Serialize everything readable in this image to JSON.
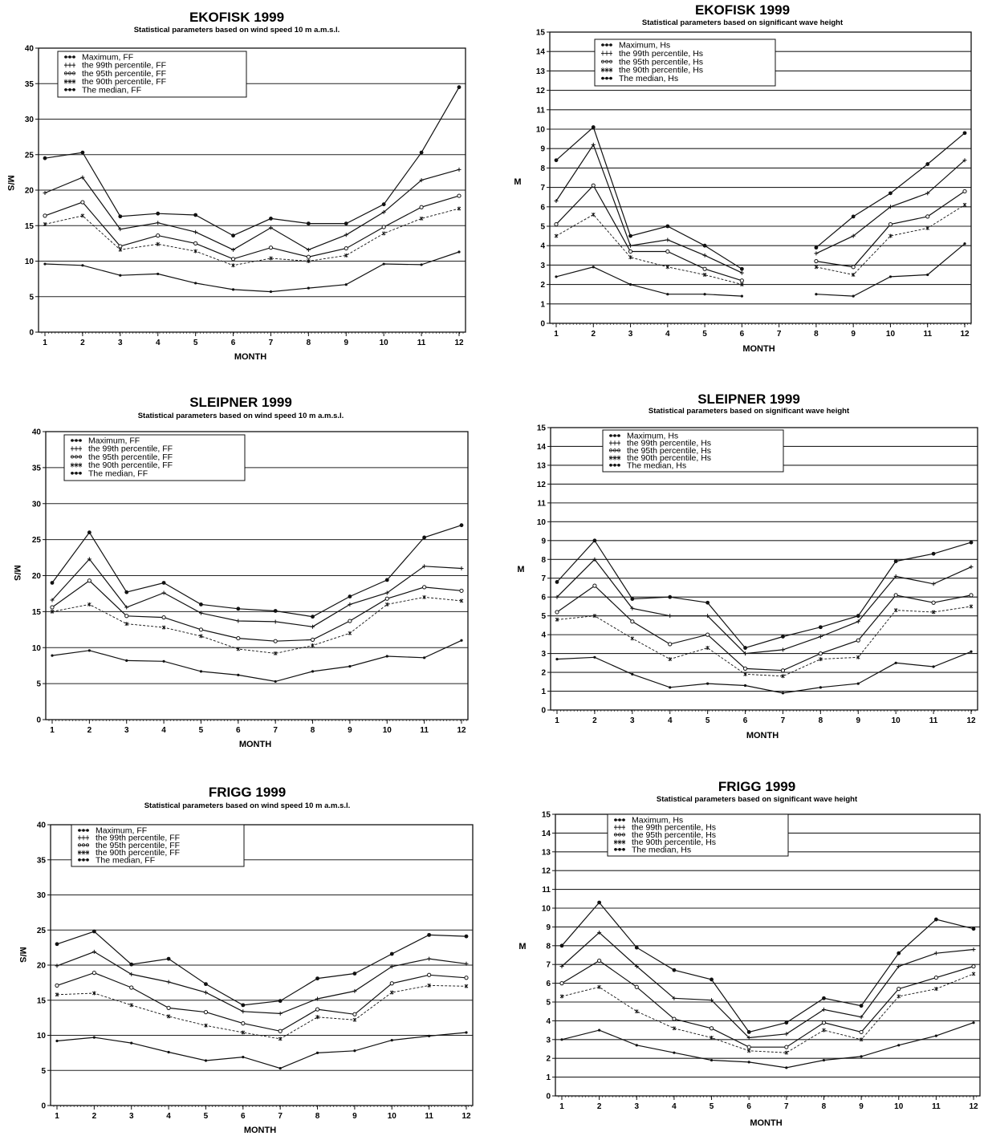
{
  "chart_data": [
    {
      "type": "line",
      "title": "EKOFISK 1999",
      "subtitle": "Statistical parameters based on wind speed 10 m a.m.s.l.",
      "xlabel": "MONTH",
      "ylabel": "M/S",
      "ylim": [
        0,
        40
      ],
      "yticks": [
        0,
        5,
        10,
        15,
        20,
        25,
        30,
        35,
        40
      ],
      "categories": [
        1,
        2,
        3,
        4,
        5,
        6,
        7,
        8,
        9,
        10,
        11,
        12
      ],
      "grid": true,
      "legend": "top-left",
      "series": [
        {
          "name": "Maximum, FF",
          "marker": "dot",
          "values": [
            24.5,
            25.3,
            16.3,
            16.7,
            16.5,
            13.6,
            16.0,
            15.3,
            15.3,
            18.0,
            25.3,
            34.5
          ]
        },
        {
          "name": "the 99th percentile, FF",
          "marker": "plus",
          "values": [
            19.6,
            21.8,
            14.5,
            15.4,
            14.1,
            11.6,
            14.7,
            11.6,
            13.7,
            16.9,
            21.4,
            22.9
          ]
        },
        {
          "name": "the 95th percentile, FF",
          "marker": "circle",
          "values": [
            16.4,
            18.3,
            12.1,
            13.6,
            12.5,
            10.3,
            11.9,
            10.6,
            11.8,
            14.8,
            17.6,
            19.2
          ]
        },
        {
          "name": "the 90th percentile, FF",
          "marker": "star",
          "dashed": true,
          "values": [
            15.2,
            16.4,
            11.6,
            12.4,
            11.4,
            9.4,
            10.4,
            10.0,
            10.8,
            13.9,
            16.0,
            17.4
          ]
        },
        {
          "name": "The median, FF",
          "marker": "small-dot",
          "values": [
            9.6,
            9.4,
            8.0,
            8.2,
            6.9,
            6.0,
            5.7,
            6.2,
            6.7,
            9.6,
            9.5,
            11.3
          ]
        }
      ]
    },
    {
      "type": "line",
      "title": "EKOFISK 1999",
      "subtitle": "Statistical parameters based on significant wave height",
      "xlabel": "MONTH",
      "ylabel": "M",
      "ylim": [
        0,
        15
      ],
      "yticks": [
        0,
        1,
        2,
        3,
        4,
        5,
        6,
        7,
        8,
        9,
        10,
        11,
        12,
        13,
        14,
        15
      ],
      "categories": [
        1,
        2,
        3,
        4,
        5,
        6,
        7,
        8,
        9,
        10,
        11,
        12
      ],
      "grid": true,
      "legend": "top-center",
      "series": [
        {
          "name": "Maximum, Hs",
          "marker": "dot",
          "values": [
            8.4,
            10.1,
            4.5,
            5.0,
            4.0,
            2.8,
            null,
            3.9,
            5.5,
            6.7,
            8.2,
            9.8
          ]
        },
        {
          "name": "the 99th percentile, Hs",
          "marker": "plus",
          "values": [
            6.3,
            9.2,
            4.0,
            4.3,
            3.5,
            2.6,
            null,
            3.6,
            4.5,
            6.0,
            6.7,
            8.4
          ]
        },
        {
          "name": "the 95th percentile, Hs",
          "marker": "circle",
          "values": [
            5.1,
            7.1,
            3.7,
            3.7,
            2.8,
            2.2,
            null,
            3.2,
            2.9,
            5.1,
            5.5,
            6.8
          ]
        },
        {
          "name": "the 90th percentile, Hs",
          "marker": "star",
          "dashed": true,
          "values": [
            4.5,
            5.6,
            3.4,
            2.9,
            2.5,
            2.0,
            null,
            2.9,
            2.5,
            4.5,
            4.9,
            6.1
          ]
        },
        {
          "name": "The median, Hs",
          "marker": "small-dot",
          "values": [
            2.4,
            2.9,
            2.0,
            1.5,
            1.5,
            1.4,
            null,
            1.5,
            1.4,
            2.4,
            2.5,
            4.1
          ]
        }
      ]
    },
    {
      "type": "line",
      "title": "SLEIPNER 1999",
      "subtitle": "Statistical parameters based on wind speed 10 m a.m.s.l.",
      "xlabel": "MONTH",
      "ylabel": "M/S",
      "ylim": [
        0,
        40
      ],
      "yticks": [
        0,
        5,
        10,
        15,
        20,
        25,
        30,
        35,
        40
      ],
      "categories": [
        1,
        2,
        3,
        4,
        5,
        6,
        7,
        8,
        9,
        10,
        11,
        12
      ],
      "grid": true,
      "legend": "top-left",
      "series": [
        {
          "name": "Maximum, FF",
          "marker": "dot",
          "values": [
            19.0,
            26.0,
            17.7,
            19.0,
            16.0,
            15.4,
            15.1,
            14.3,
            17.1,
            19.4,
            25.3,
            27.0
          ]
        },
        {
          "name": "the 99th percentile, FF",
          "marker": "plus",
          "values": [
            16.6,
            22.3,
            15.6,
            17.6,
            14.8,
            13.7,
            13.6,
            12.9,
            16.0,
            17.6,
            21.3,
            21.0
          ]
        },
        {
          "name": "the 95th percentile, FF",
          "marker": "circle",
          "values": [
            15.6,
            19.3,
            14.4,
            14.2,
            12.5,
            11.3,
            10.9,
            11.1,
            13.7,
            16.8,
            18.4,
            17.9
          ]
        },
        {
          "name": "the 90th percentile, FF",
          "marker": "star",
          "dashed": true,
          "values": [
            15.0,
            16.0,
            13.3,
            12.8,
            11.6,
            9.8,
            9.2,
            10.3,
            12.0,
            16.0,
            17.0,
            16.5
          ]
        },
        {
          "name": "The median, FF",
          "marker": "small-dot",
          "values": [
            8.9,
            9.6,
            8.2,
            8.1,
            6.7,
            6.2,
            5.3,
            6.7,
            7.4,
            8.8,
            8.6,
            11.0
          ]
        }
      ]
    },
    {
      "type": "line",
      "title": "SLEIPNER 1999",
      "subtitle": "Statistical parameters based on significant wave height",
      "xlabel": "MONTH",
      "ylabel": "M",
      "ylim": [
        0,
        15
      ],
      "yticks": [
        0,
        1,
        2,
        3,
        4,
        5,
        6,
        7,
        8,
        9,
        10,
        11,
        12,
        13,
        14,
        15
      ],
      "categories": [
        1,
        2,
        3,
        4,
        5,
        6,
        7,
        8,
        9,
        10,
        11,
        12
      ],
      "grid": true,
      "legend": "top-left",
      "series": [
        {
          "name": "Maximum, Hs",
          "marker": "dot",
          "values": [
            6.8,
            9.0,
            5.9,
            6.0,
            5.7,
            3.3,
            3.9,
            4.4,
            5.0,
            7.9,
            8.3,
            8.9
          ]
        },
        {
          "name": "the 99th percentile, Hs",
          "marker": "plus",
          "values": [
            6.0,
            8.0,
            5.4,
            5.0,
            5.0,
            3.0,
            3.2,
            3.9,
            4.7,
            7.1,
            6.7,
            7.6
          ]
        },
        {
          "name": "the 95th percentile, Hs",
          "marker": "circle",
          "values": [
            5.2,
            6.6,
            4.7,
            3.5,
            4.0,
            2.2,
            2.1,
            3.0,
            3.7,
            6.1,
            5.7,
            6.1
          ]
        },
        {
          "name": "the 90th percentile, Hs",
          "marker": "star",
          "dashed": true,
          "values": [
            4.8,
            5.0,
            3.8,
            2.7,
            3.3,
            1.9,
            1.8,
            2.7,
            2.8,
            5.3,
            5.2,
            5.5
          ]
        },
        {
          "name": "The median, Hs",
          "marker": "small-dot",
          "values": [
            2.7,
            2.8,
            1.9,
            1.2,
            1.4,
            1.3,
            0.9,
            1.2,
            1.4,
            2.5,
            2.3,
            3.1
          ]
        }
      ]
    },
    {
      "type": "line",
      "title": "FRIGG 1999",
      "subtitle": "Statistical parameters based on wind speed 10 m a.m.s.l.",
      "xlabel": "MONTH",
      "ylabel": "M/S",
      "ylim": [
        0,
        40
      ],
      "yticks": [
        0,
        5,
        10,
        15,
        20,
        25,
        30,
        35,
        40
      ],
      "categories": [
        1,
        2,
        3,
        4,
        5,
        6,
        7,
        8,
        9,
        10,
        11,
        12
      ],
      "grid": true,
      "legend": "top-left",
      "series": [
        {
          "name": "Maximum, FF",
          "marker": "dot",
          "values": [
            23.0,
            24.8,
            20.1,
            20.9,
            17.3,
            14.3,
            14.9,
            18.1,
            18.8,
            21.6,
            24.3,
            24.1
          ]
        },
        {
          "name": "the 99th percentile, FF",
          "marker": "plus",
          "values": [
            19.9,
            21.9,
            18.7,
            17.6,
            16.1,
            13.4,
            13.1,
            15.2,
            16.3,
            19.8,
            20.9,
            20.2
          ]
        },
        {
          "name": "the 95th percentile, FF",
          "marker": "circle",
          "values": [
            17.1,
            18.9,
            16.8,
            13.9,
            13.3,
            11.7,
            10.6,
            13.7,
            13.0,
            17.4,
            18.6,
            18.2
          ]
        },
        {
          "name": "the 90th percentile, FF",
          "marker": "star",
          "dashed": true,
          "values": [
            15.8,
            16.0,
            14.3,
            12.7,
            11.4,
            10.4,
            9.5,
            12.6,
            12.2,
            16.1,
            17.1,
            17.0
          ]
        },
        {
          "name": "The median, FF",
          "marker": "small-dot",
          "values": [
            9.2,
            9.7,
            8.9,
            7.6,
            6.4,
            6.9,
            5.3,
            7.5,
            7.8,
            9.3,
            9.9,
            10.4
          ]
        }
      ]
    },
    {
      "type": "line",
      "title": "FRIGG 1999",
      "subtitle": "Statistical parameters based on significant wave height",
      "xlabel": "MONTH",
      "ylabel": "M",
      "ylim": [
        0,
        15
      ],
      "yticks": [
        0,
        1,
        2,
        3,
        4,
        5,
        6,
        7,
        8,
        9,
        10,
        11,
        12,
        13,
        14,
        15
      ],
      "categories": [
        1,
        2,
        3,
        4,
        5,
        6,
        7,
        8,
        9,
        10,
        11,
        12
      ],
      "grid": true,
      "legend": "top-left",
      "series": [
        {
          "name": "Maximum, Hs",
          "marker": "dot",
          "values": [
            8.0,
            10.3,
            7.9,
            6.7,
            6.2,
            3.4,
            3.9,
            5.2,
            4.8,
            7.6,
            9.4,
            8.9
          ]
        },
        {
          "name": "the 99th percentile, Hs",
          "marker": "plus",
          "values": [
            6.9,
            8.7,
            6.9,
            5.2,
            5.1,
            3.1,
            3.3,
            4.6,
            4.2,
            6.9,
            7.6,
            7.8
          ]
        },
        {
          "name": "the 95th percentile, Hs",
          "marker": "circle",
          "values": [
            6.0,
            7.2,
            5.8,
            4.1,
            3.6,
            2.6,
            2.6,
            3.9,
            3.4,
            5.7,
            6.3,
            6.9
          ]
        },
        {
          "name": "the 90th percentile, Hs",
          "marker": "star",
          "dashed": true,
          "values": [
            5.3,
            5.8,
            4.5,
            3.6,
            3.1,
            2.4,
            2.3,
            3.5,
            3.0,
            5.3,
            5.7,
            6.5
          ]
        },
        {
          "name": "The median, Hs",
          "marker": "small-dot",
          "values": [
            3.0,
            3.5,
            2.7,
            2.3,
            1.9,
            1.8,
            1.5,
            1.9,
            2.1,
            2.7,
            3.2,
            3.9
          ]
        }
      ]
    }
  ]
}
